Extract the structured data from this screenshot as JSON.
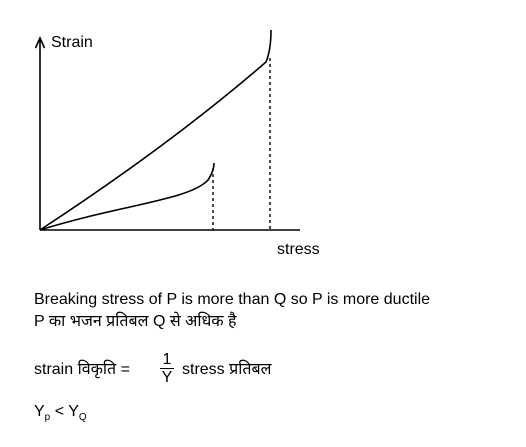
{
  "graph": {
    "y_axis_label": "Strain",
    "x_axis_label": "stress"
  },
  "text": {
    "breaking_line": "Breaking stress of  P is more than Q so P is more ductile",
    "hindi_line": "P का भजन प्रतिबल Q से अधिक है",
    "formula_left": "strain विकृति =",
    "formula_num": "1",
    "formula_den": "Y",
    "formula_right": "stress प्रतिबल",
    "ineq_y1": "Y",
    "ineq_sub1": "p",
    "ineq_op": "<",
    "ineq_y2": "Y",
    "ineq_sub2": "Q"
  }
}
